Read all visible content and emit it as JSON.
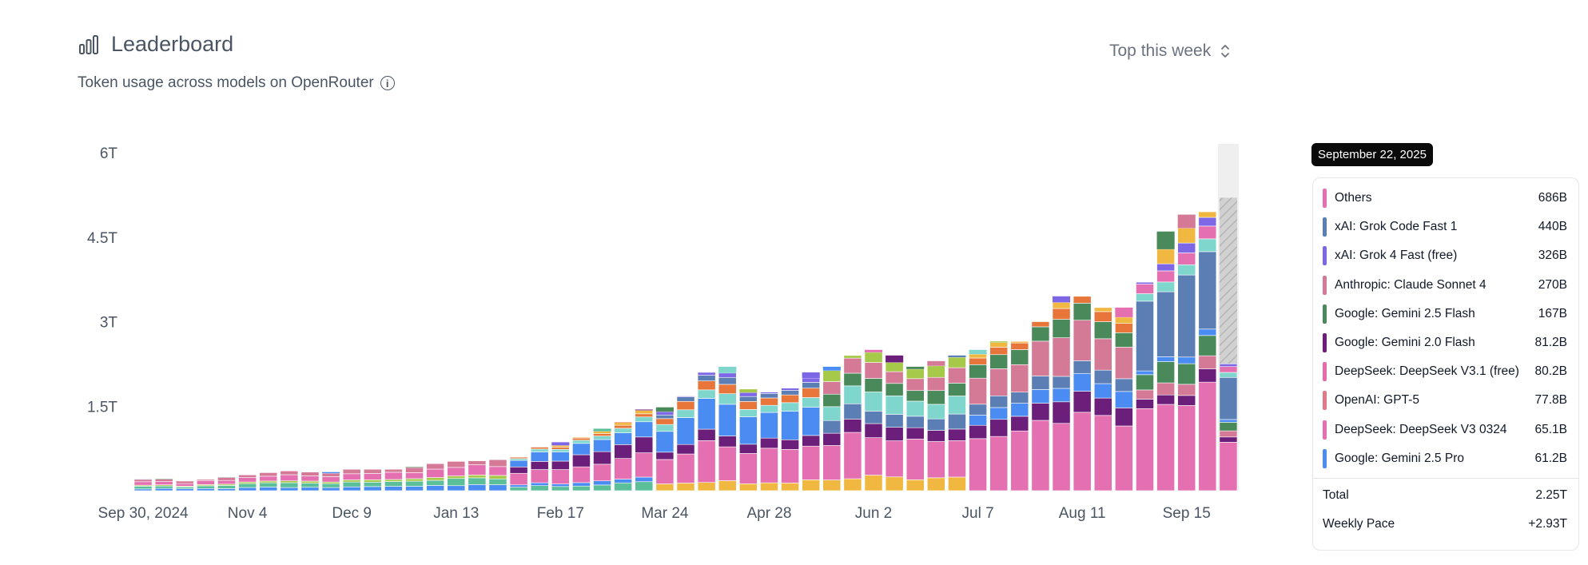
{
  "header": {
    "title": "Leaderboard",
    "subtitle": "Token usage across models on OpenRouter",
    "period_label": "Top this week"
  },
  "tooltip": {
    "date": "September 22, 2025",
    "rows": [
      {
        "name": "Others",
        "value": "686B",
        "color": "#e46fb1"
      },
      {
        "name": "xAI: Grok Code Fast 1",
        "value": "440B",
        "color": "#5b7fb5"
      },
      {
        "name": "xAI: Grok 4 Fast (free)",
        "value": "326B",
        "color": "#7e67e6"
      },
      {
        "name": "Anthropic: Claude Sonnet 4",
        "value": "270B",
        "color": "#d47a97"
      },
      {
        "name": "Google: Gemini 2.5 Flash",
        "value": "167B",
        "color": "#4a8a5a"
      },
      {
        "name": "Google: Gemini 2.0 Flash",
        "value": "81.2B",
        "color": "#6b1f7a"
      },
      {
        "name": "DeepSeek: DeepSeek V3.1 (free)",
        "value": "80.2B",
        "color": "#e86aab"
      },
      {
        "name": "OpenAI: GPT-5",
        "value": "77.8B",
        "color": "#e07a86"
      },
      {
        "name": "DeepSeek: DeepSeek V3 0324",
        "value": "65.1B",
        "color": "#e46fb1"
      },
      {
        "name": "Google: Gemini 2.5 Pro",
        "value": "61.2B",
        "color": "#4b8cf2"
      }
    ],
    "total_label": "Total",
    "total_value": "2.25T",
    "pace_label": "Weekly Pace",
    "pace_value": "+2.93T"
  },
  "chart_data": {
    "type": "bar",
    "stacked": true,
    "y_ticks": [
      "6T",
      "4.5T",
      "3T",
      "1.5T"
    ],
    "y_tick_values": [
      6,
      4.5,
      3,
      1.5
    ],
    "ylim": [
      0,
      6
    ],
    "x_tick_labels": [
      "Sep 30, 2024",
      "Nov 4",
      "Dec 9",
      "Jan 13",
      "Feb 17",
      "Mar 24",
      "Apr 28",
      "Jun 2",
      "Jul 7",
      "Aug 11",
      "Sep 15"
    ],
    "x_tick_indices": [
      0,
      5,
      10,
      15,
      20,
      25,
      30,
      35,
      40,
      45,
      50
    ],
    "unit": "trillion tokens",
    "weekly_totals": [
      0.2,
      0.21,
      0.17,
      0.2,
      0.24,
      0.28,
      0.32,
      0.35,
      0.33,
      0.33,
      0.38,
      0.38,
      0.38,
      0.42,
      0.48,
      0.52,
      0.53,
      0.55,
      0.6,
      0.78,
      0.86,
      0.95,
      1.1,
      1.22,
      1.44,
      1.48,
      1.68,
      2.1,
      2.2,
      1.8,
      1.75,
      1.82,
      2.1,
      2.2,
      2.4,
      2.5,
      2.4,
      2.2,
      2.3,
      2.4,
      2.5,
      2.65,
      2.65,
      3.0,
      3.45,
      3.45,
      3.25,
      3.25,
      3.7,
      4.6,
      4.9,
      4.95,
      5.2
    ],
    "partial_last_week": true,
    "colors": [
      "#4b8cf2",
      "#5bbf9a",
      "#e46fb1",
      "#6b1f7a",
      "#4a8a5a",
      "#d47a97",
      "#5b7fb5",
      "#7fd6cc",
      "#a7c94a",
      "#e8763a",
      "#f0b840",
      "#7e67e6"
    ]
  }
}
